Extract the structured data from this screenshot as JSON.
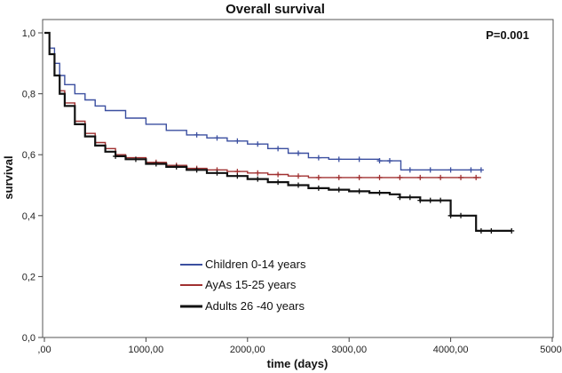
{
  "chart_data": {
    "type": "line",
    "title": "Overall survival",
    "xlabel": "time (days)",
    "ylabel": "survival",
    "annotation": "P=0.001",
    "xlim": [
      0,
      5000
    ],
    "ylim": [
      0,
      1.0
    ],
    "xticks": [
      0,
      1000,
      2000,
      3000,
      4000,
      5000
    ],
    "xtick_labels": [
      ",00",
      "1000,00",
      "2000,00",
      "3000,00",
      "4000,00",
      "5000,"
    ],
    "yticks": [
      0,
      0.2,
      0.4,
      0.6,
      0.8,
      1.0
    ],
    "ytick_labels": [
      "0,0",
      "0,2",
      "0,4",
      "0,6",
      "0,8",
      "1,0"
    ],
    "legend_position": "bottom-left",
    "series": [
      {
        "name": "Children 0-14 years",
        "color": "#3b4fa0",
        "x": [
          0,
          50,
          100,
          150,
          200,
          300,
          400,
          500,
          600,
          800,
          1000,
          1200,
          1400,
          1600,
          1800,
          2000,
          2200,
          2400,
          2600,
          2800,
          3000,
          3300,
          3500,
          3510,
          3800,
          4000,
          4300
        ],
        "y": [
          1.0,
          0.95,
          0.9,
          0.86,
          0.83,
          0.8,
          0.78,
          0.76,
          0.745,
          0.72,
          0.7,
          0.68,
          0.665,
          0.655,
          0.645,
          0.635,
          0.62,
          0.605,
          0.59,
          0.585,
          0.585,
          0.58,
          0.58,
          0.55,
          0.55,
          0.55,
          0.55
        ],
        "censor_x": [
          1500,
          1700,
          1900,
          2100,
          2300,
          2500,
          2700,
          2900,
          3100,
          3300,
          3400,
          3600,
          3800,
          4000,
          4200,
          4300
        ]
      },
      {
        "name": "AyAs 15-25 years",
        "color": "#a03030",
        "x": [
          0,
          50,
          100,
          150,
          200,
          300,
          400,
          500,
          600,
          700,
          800,
          1000,
          1200,
          1400,
          1600,
          1800,
          2000,
          2200,
          2400,
          2600,
          3000,
          3500,
          4000,
          4300
        ],
        "y": [
          1.0,
          0.93,
          0.86,
          0.81,
          0.77,
          0.71,
          0.67,
          0.64,
          0.62,
          0.6,
          0.59,
          0.575,
          0.565,
          0.555,
          0.55,
          0.545,
          0.54,
          0.535,
          0.53,
          0.525,
          0.525,
          0.525,
          0.525,
          0.525
        ],
        "censor_x": [
          1100,
          1300,
          1500,
          1700,
          1900,
          2100,
          2300,
          2500,
          2700,
          2900,
          3100,
          3300,
          3500,
          3700,
          3900,
          4100,
          4250
        ]
      },
      {
        "name": "Adults 26 -40 years",
        "color": "#111111",
        "x": [
          0,
          50,
          100,
          150,
          200,
          300,
          400,
          500,
          600,
          700,
          800,
          1000,
          1200,
          1400,
          1600,
          1800,
          2000,
          2200,
          2400,
          2600,
          2800,
          3000,
          3200,
          3400,
          3500,
          3700,
          3900,
          4000,
          4100,
          4200,
          4250,
          4600
        ],
        "y": [
          1.0,
          0.93,
          0.86,
          0.8,
          0.76,
          0.7,
          0.66,
          0.63,
          0.61,
          0.595,
          0.585,
          0.57,
          0.56,
          0.55,
          0.54,
          0.53,
          0.52,
          0.51,
          0.5,
          0.49,
          0.485,
          0.48,
          0.475,
          0.47,
          0.46,
          0.45,
          0.45,
          0.4,
          0.4,
          0.4,
          0.35,
          0.35
        ],
        "censor_x": [
          700,
          900,
          1100,
          1300,
          1500,
          1700,
          1900,
          2100,
          2300,
          2500,
          2700,
          2900,
          3100,
          3300,
          3500,
          3600,
          3700,
          3800,
          3900,
          4000,
          4100,
          4300,
          4400,
          4600
        ]
      }
    ]
  }
}
